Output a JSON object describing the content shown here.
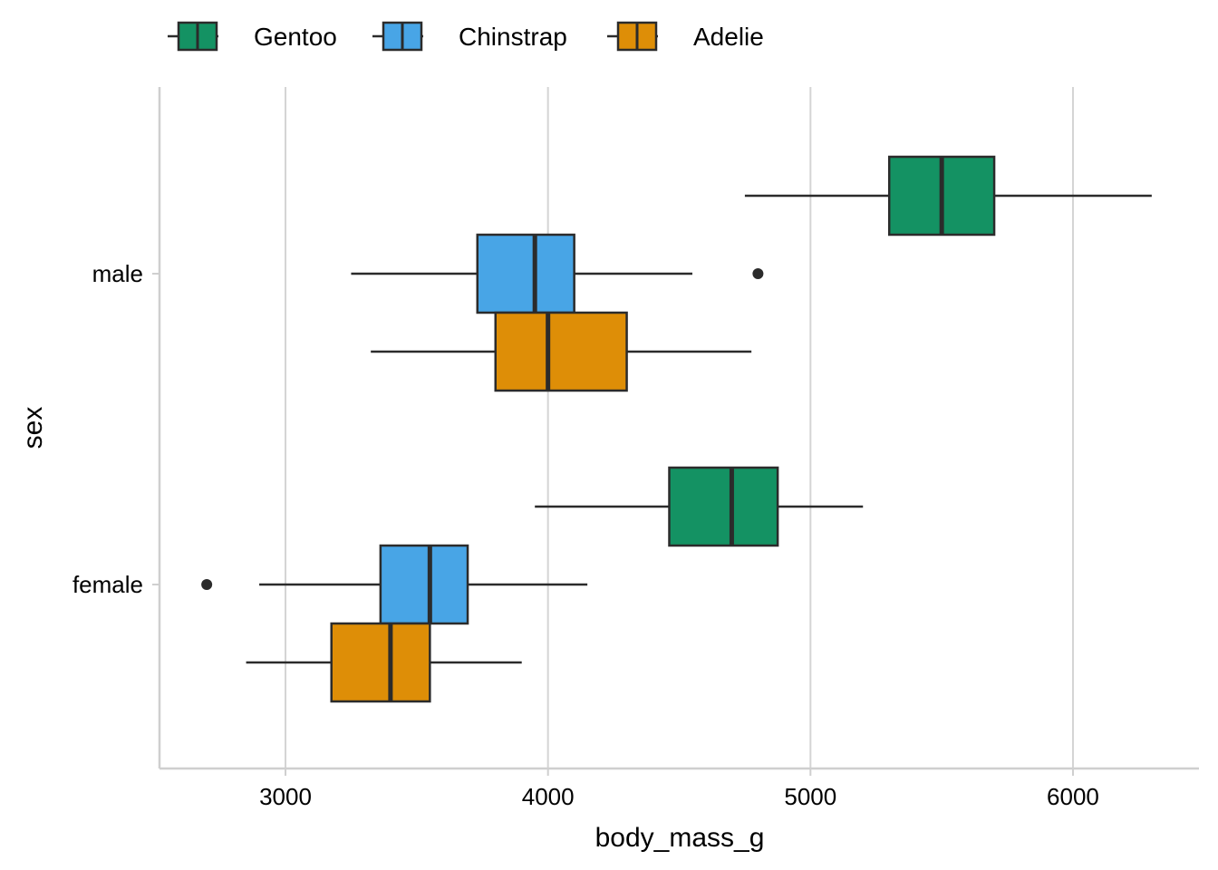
{
  "chart_data": {
    "type": "boxplot",
    "orientation": "horizontal",
    "xlabel": "body_mass_g",
    "ylabel": "sex",
    "xlim": [
      2520,
      6480
    ],
    "xticks": [
      3000,
      4000,
      5000,
      6000
    ],
    "categories": [
      "male",
      "female"
    ],
    "grid": {
      "vertical": true,
      "horizontal": false
    },
    "legend": {
      "position": "top",
      "entries": [
        "Gentoo",
        "Chinstrap",
        "Adelie"
      ]
    },
    "series": [
      {
        "name": "Gentoo",
        "color": "#149263",
        "boxes": [
          {
            "category": "male",
            "whisker_low": 4750,
            "q1": 5300,
            "median": 5500,
            "q3": 5700,
            "whisker_high": 6300,
            "outliers": []
          },
          {
            "category": "female",
            "whisker_low": 3950,
            "q1": 4462,
            "median": 4700,
            "q3": 4875,
            "whisker_high": 5200,
            "outliers": []
          }
        ]
      },
      {
        "name": "Chinstrap",
        "color": "#48A5E6",
        "boxes": [
          {
            "category": "male",
            "whisker_low": 3250,
            "q1": 3731,
            "median": 3950,
            "q3": 4100,
            "whisker_high": 4550,
            "outliers": [
              4800
            ]
          },
          {
            "category": "female",
            "whisker_low": 2900,
            "q1": 3362,
            "median": 3550,
            "q3": 3694,
            "whisker_high": 4150,
            "outliers": [
              2700
            ]
          }
        ]
      },
      {
        "name": "Adelie",
        "color": "#DE8E07",
        "boxes": [
          {
            "category": "male",
            "whisker_low": 3325,
            "q1": 3800,
            "median": 4000,
            "q3": 4300,
            "whisker_high": 4775,
            "outliers": []
          },
          {
            "category": "female",
            "whisker_low": 2850,
            "q1": 3175,
            "median": 3400,
            "q3": 3550,
            "whisker_high": 3900,
            "outliers": []
          }
        ]
      }
    ]
  }
}
